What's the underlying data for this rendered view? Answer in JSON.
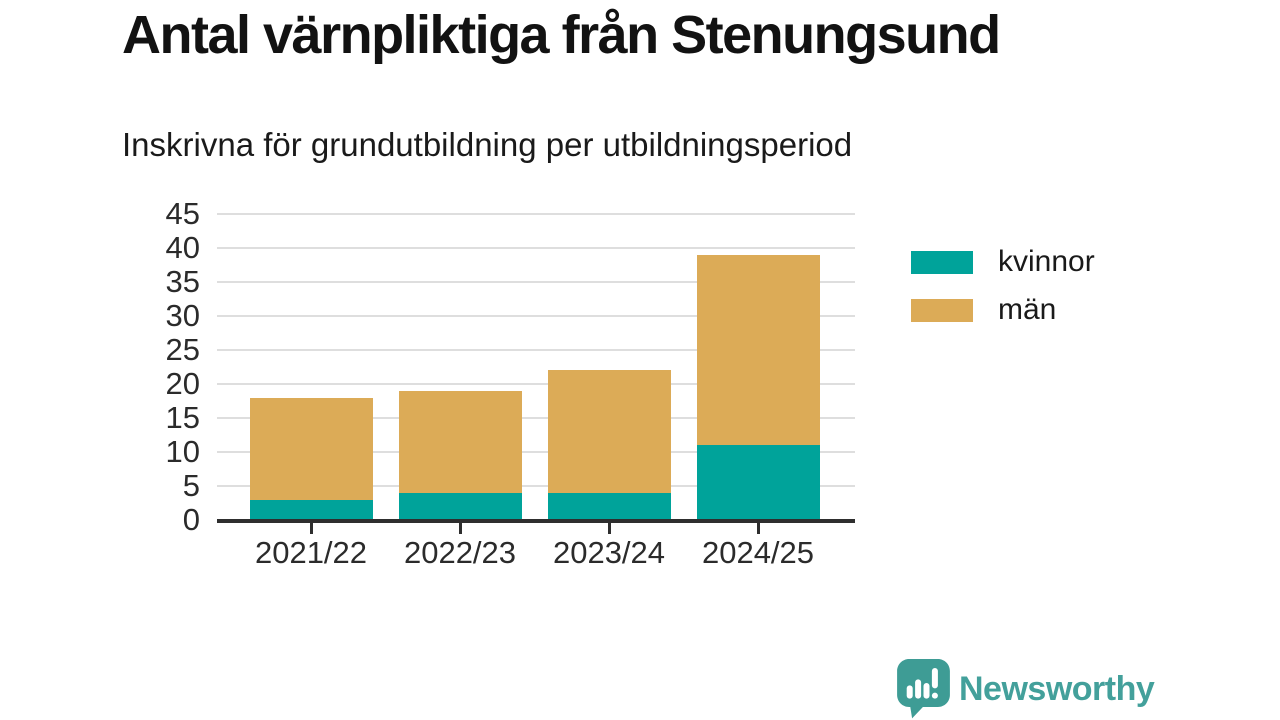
{
  "chart_data": {
    "type": "bar",
    "stacked": true,
    "title": "Antal värnpliktiga från Stenungsund",
    "subtitle": "Inskrivna för grundutbildning per utbildningsperiod",
    "categories": [
      "2021/22",
      "2022/23",
      "2023/24",
      "2024/25"
    ],
    "series": [
      {
        "name": "kvinnor",
        "color": "#00a39a",
        "values": [
          3,
          4,
          4,
          11
        ]
      },
      {
        "name": "män",
        "color": "#dcab57",
        "values": [
          15,
          15,
          18,
          28
        ]
      }
    ],
    "ylim": [
      0,
      45
    ],
    "yticks": [
      0,
      5,
      10,
      15,
      20,
      25,
      30,
      35,
      40,
      45
    ],
    "xlabel": "",
    "ylabel": "",
    "grid": true,
    "legend_position": "right"
  },
  "brand": {
    "name": "Newsworthy"
  },
  "colors": {
    "kvinnor": "#00a39a",
    "man": "#dcab57",
    "grid": "#dedede",
    "axis": "#2e2e2e",
    "brand": "#43a09b",
    "background": "#ffffff"
  }
}
